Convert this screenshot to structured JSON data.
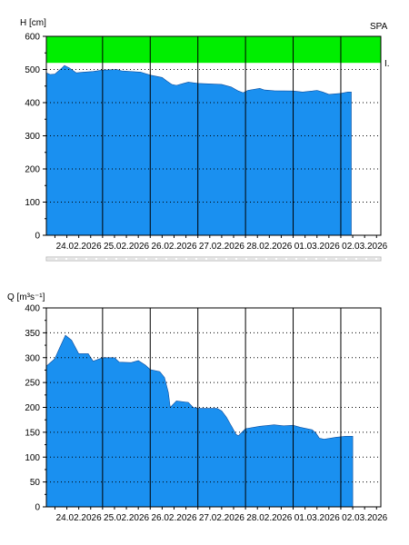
{
  "chart_data": [
    {
      "type": "area",
      "ylabel": "H [cm]",
      "station_code": "SPA",
      "band_label": "I.",
      "ylim": [
        0,
        600
      ],
      "yticks": [
        0,
        100,
        200,
        300,
        400,
        500,
        600
      ],
      "x_dates": [
        "24.02.2026",
        "25.02.2026",
        "26.02.2026",
        "27.02.2026",
        "28.02.2026",
        "01.03.2026",
        "02.03.2026"
      ],
      "x_range_days": [
        -0.18,
        6.84
      ],
      "band": {
        "from": 520,
        "to": 600,
        "color": "#00ee00"
      },
      "fill_color": "#1a90f0",
      "grid": true,
      "points": [
        [
          -0.18,
          490
        ],
        [
          -0.1,
          485
        ],
        [
          0.0,
          486
        ],
        [
          0.15,
          505
        ],
        [
          0.2,
          512
        ],
        [
          0.3,
          505
        ],
        [
          0.45,
          490
        ],
        [
          0.6,
          492
        ],
        [
          0.8,
          494
        ],
        [
          1.0,
          498
        ],
        [
          1.3,
          500
        ],
        [
          1.4,
          496
        ],
        [
          1.8,
          492
        ],
        [
          2.0,
          483
        ],
        [
          2.25,
          476
        ],
        [
          2.35,
          465
        ],
        [
          2.45,
          455
        ],
        [
          2.55,
          452
        ],
        [
          2.7,
          458
        ],
        [
          2.8,
          462
        ],
        [
          3.0,
          458
        ],
        [
          3.5,
          455
        ],
        [
          3.7,
          447
        ],
        [
          3.85,
          435
        ],
        [
          3.95,
          430
        ],
        [
          4.05,
          437
        ],
        [
          4.3,
          443
        ],
        [
          4.4,
          438
        ],
        [
          4.6,
          436
        ],
        [
          5.0,
          435
        ],
        [
          5.2,
          432
        ],
        [
          5.4,
          435
        ],
        [
          5.5,
          437
        ],
        [
          5.62,
          432
        ],
        [
          5.75,
          425
        ],
        [
          6.0,
          428
        ],
        [
          6.15,
          432
        ],
        [
          6.22,
          432
        ]
      ]
    },
    {
      "type": "area",
      "ylabel": "Q [m³s⁻¹]",
      "ylim": [
        0,
        400
      ],
      "yticks": [
        0,
        50,
        100,
        150,
        200,
        250,
        300,
        350,
        400
      ],
      "x_dates": [
        "24.02.2026",
        "25.02.2026",
        "26.02.2026",
        "27.02.2026",
        "28.02.2026",
        "01.03.2026",
        "02.03.2026"
      ],
      "x_range_days": [
        -0.18,
        6.84
      ],
      "fill_color": "#1a90f0",
      "grid": true,
      "points": [
        [
          -0.18,
          283
        ],
        [
          0.0,
          298
        ],
        [
          0.1,
          320
        ],
        [
          0.22,
          345
        ],
        [
          0.35,
          335
        ],
        [
          0.5,
          308
        ],
        [
          0.7,
          308
        ],
        [
          0.8,
          293
        ],
        [
          1.0,
          300
        ],
        [
          1.25,
          300
        ],
        [
          1.35,
          291
        ],
        [
          1.6,
          290
        ],
        [
          1.75,
          294
        ],
        [
          1.9,
          285
        ],
        [
          2.0,
          276
        ],
        [
          2.2,
          272
        ],
        [
          2.3,
          260
        ],
        [
          2.38,
          230
        ],
        [
          2.42,
          200
        ],
        [
          2.55,
          213
        ],
        [
          2.8,
          210
        ],
        [
          2.9,
          200
        ],
        [
          3.0,
          198
        ],
        [
          3.4,
          198
        ],
        [
          3.5,
          193
        ],
        [
          3.6,
          180
        ],
        [
          3.72,
          160
        ],
        [
          3.8,
          146
        ],
        [
          3.85,
          143
        ],
        [
          4.0,
          157
        ],
        [
          4.3,
          162
        ],
        [
          4.6,
          165
        ],
        [
          4.8,
          163
        ],
        [
          5.0,
          164
        ],
        [
          5.15,
          160
        ],
        [
          5.4,
          155
        ],
        [
          5.48,
          148
        ],
        [
          5.55,
          138
        ],
        [
          5.65,
          136
        ],
        [
          5.9,
          140
        ],
        [
          6.1,
          142
        ],
        [
          6.25,
          142
        ]
      ]
    }
  ]
}
